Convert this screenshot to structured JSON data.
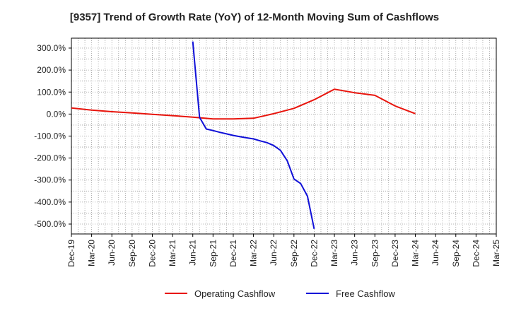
{
  "chart_data": {
    "type": "line",
    "title": "[9357]  Trend of Growth Rate (YoY) of 12-Month Moving Sum of Cashflows",
    "xlabel": "",
    "ylabel": "",
    "x_tick_labels": [
      "Dec-19",
      "Mar-20",
      "Jun-20",
      "Sep-20",
      "Dec-20",
      "Mar-21",
      "Jun-21",
      "Sep-21",
      "Dec-21",
      "Mar-22",
      "Jun-22",
      "Sep-22",
      "Dec-22",
      "Mar-23",
      "Jun-23",
      "Sep-23",
      "Dec-23",
      "Mar-24",
      "Jun-24",
      "Sep-24",
      "Dec-24",
      "Mar-25"
    ],
    "y_ticks": [
      300,
      200,
      100,
      0,
      -100,
      -200,
      -300,
      -400,
      -500
    ],
    "y_tick_labels": [
      "300.0%",
      "200.0%",
      "100.0%",
      "0.0%",
      "-100.0%",
      "-200.0%",
      "-300.0%",
      "-400.0%",
      "-500.0%"
    ],
    "ylim": [
      -545,
      345
    ],
    "grid": true,
    "legend_position": "bottom",
    "series": [
      {
        "name": "Operating Cashflow",
        "color": "#e8140c",
        "points": [
          [
            "Dec-19",
            28
          ],
          [
            "Mar-20",
            18
          ],
          [
            "Jun-20",
            11
          ],
          [
            "Sep-20",
            5
          ],
          [
            "Dec-20",
            -1
          ],
          [
            "Mar-21",
            -7
          ],
          [
            "Jun-21",
            -14
          ],
          [
            "Sep-21",
            -22
          ],
          [
            "Dec-21",
            -22
          ],
          [
            "Mar-22",
            -19
          ],
          [
            "Jun-22",
            2
          ],
          [
            "Sep-22",
            26
          ],
          [
            "Dec-22",
            65
          ],
          [
            "Mar-23",
            113
          ],
          [
            "Jun-23",
            97
          ],
          [
            "Sep-23",
            85
          ],
          [
            "Dec-23",
            37
          ],
          [
            "Mar-24",
            2
          ]
        ]
      },
      {
        "name": "Free Cashflow",
        "color": "#1010d8",
        "points": [
          [
            "Jun-21",
            330
          ],
          [
            "Jul-21",
            -15
          ],
          [
            "Aug-21",
            -68
          ],
          [
            "Sep-21",
            -75
          ],
          [
            "Oct-21",
            -83
          ],
          [
            "Nov-21",
            -90
          ],
          [
            "Dec-21",
            -97
          ],
          [
            "Jan-22",
            -103
          ],
          [
            "Feb-22",
            -108
          ],
          [
            "Mar-22",
            -113
          ],
          [
            "Apr-22",
            -122
          ],
          [
            "May-22",
            -130
          ],
          [
            "Jun-22",
            -143
          ],
          [
            "Jul-22",
            -165
          ],
          [
            "Aug-22",
            -212
          ],
          [
            "Sep-22",
            -295
          ],
          [
            "Oct-22",
            -316
          ],
          [
            "Nov-22",
            -373
          ],
          [
            "Dec-22",
            -522
          ]
        ]
      }
    ]
  }
}
